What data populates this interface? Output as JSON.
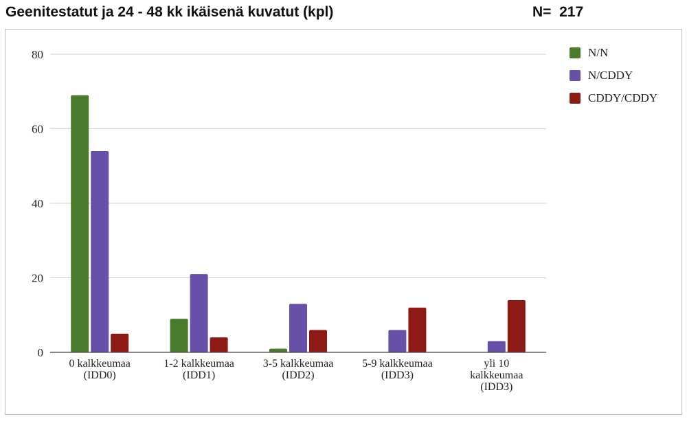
{
  "header": {
    "title": "Geenitestatut ja 24 - 48 kk ikäisenä kuvatut (kpl)",
    "n_label": "N=  217"
  },
  "chart_data": {
    "type": "bar",
    "categories": [
      [
        "0 kalkkeumaa",
        "(IDD0)"
      ],
      [
        "1-2 kalkkeumaa",
        "(IDD1)"
      ],
      [
        "3-5 kalkkeumaa",
        "(IDD2)"
      ],
      [
        "5-9 kalkkeumaa",
        "(IDD3)"
      ],
      [
        "yli 10",
        "kalkkeumaa",
        "(IDD3)"
      ]
    ],
    "series": [
      {
        "name": "N/N",
        "color": "#4a7a2c",
        "values": [
          69,
          9,
          1,
          0,
          0
        ]
      },
      {
        "name": "N/CDDY",
        "color": "#6650a8",
        "values": [
          54,
          21,
          13,
          6,
          3
        ]
      },
      {
        "name": "CDDY/CDDY",
        "color": "#8e1a15",
        "values": [
          5,
          4,
          6,
          12,
          14
        ]
      }
    ],
    "ylim": [
      0,
      80
    ],
    "yticks": [
      0,
      20,
      40,
      60,
      80
    ],
    "grid": true,
    "legend": "right"
  }
}
